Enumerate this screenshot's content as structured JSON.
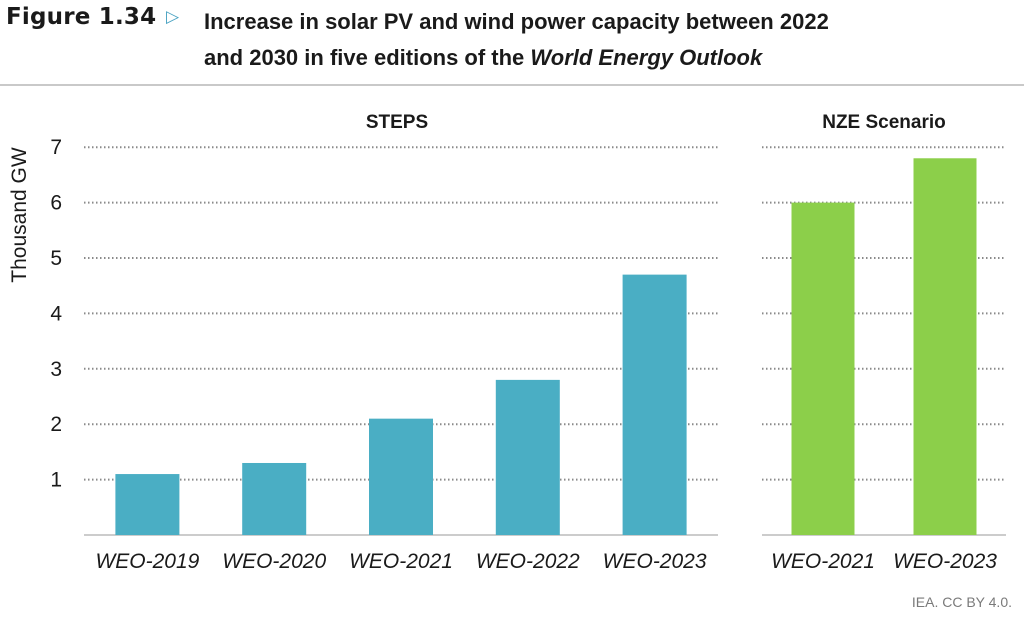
{
  "header": {
    "figure_label": "Figure 1.34",
    "title_line1": "Increase in solar PV and wind power capacity between 2022",
    "title_line2_prefix": "and 2030 in five editions of the ",
    "title_line2_italic": "World Energy Outlook"
  },
  "credit": "IEA. CC BY 4.0.",
  "chart_data": [
    {
      "type": "bar",
      "title": "STEPS",
      "ylabel": "Thousand GW",
      "ylim": [
        0,
        7
      ],
      "yticks": [
        1,
        2,
        3,
        4,
        5,
        6,
        7
      ],
      "grid": true,
      "categories": [
        "WEO-2019",
        "WEO-2020",
        "WEO-2021",
        "WEO-2022",
        "WEO-2023"
      ],
      "values": [
        1.1,
        1.3,
        2.1,
        2.8,
        4.7
      ],
      "color": "#4aaec4"
    },
    {
      "type": "bar",
      "title": "NZE Scenario",
      "ylim": [
        0,
        7
      ],
      "grid": true,
      "categories": [
        "WEO-2021",
        "WEO-2023"
      ],
      "values": [
        6.0,
        6.8
      ],
      "color": "#8ccf4a"
    }
  ]
}
